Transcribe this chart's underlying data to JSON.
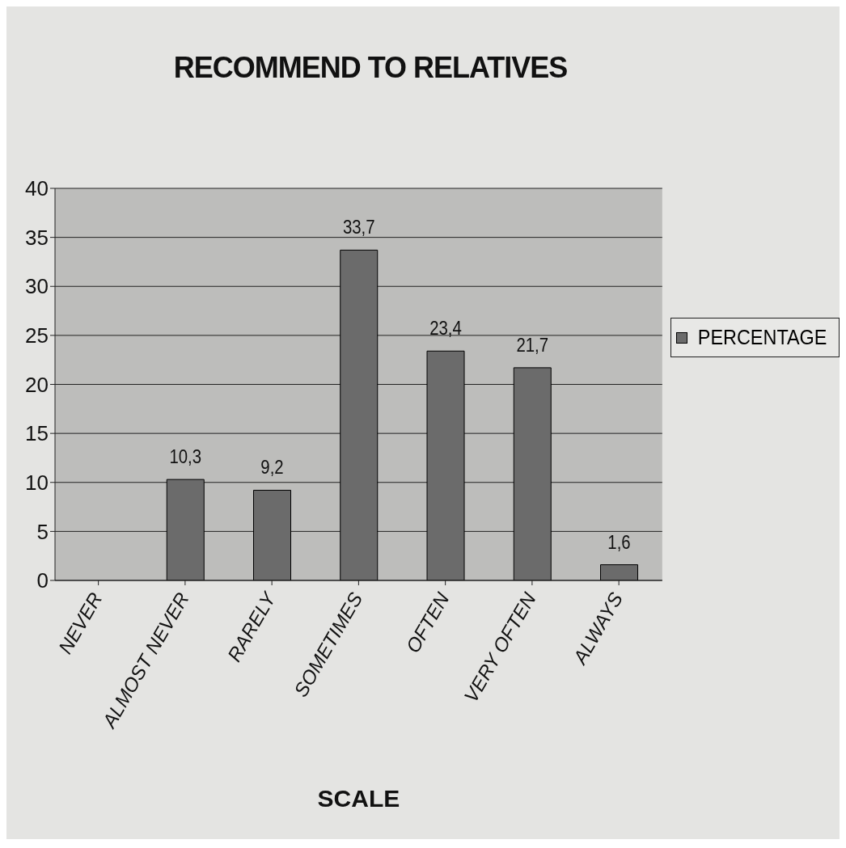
{
  "chart_data": {
    "type": "bar",
    "title": "RECOMMEND TO RELATIVES",
    "xlabel": "SCALE",
    "categories": [
      "NEVER",
      "ALMOST NEVER",
      "RARELY",
      "SOMETIMES",
      "OFTEN",
      "VERY OFTEN",
      "ALWAYS"
    ],
    "series": [
      {
        "name": "PERCENTAGE",
        "color": "#6b6b6b",
        "values": [
          0,
          10.3,
          9.2,
          33.7,
          23.4,
          21.7,
          1.6
        ],
        "value_labels": [
          null,
          "10,3",
          "9,2",
          "33,7",
          "23,4",
          "21,7",
          "1,6"
        ]
      }
    ],
    "ylim": [
      0,
      40
    ],
    "yticks": [
      0,
      5,
      10,
      15,
      20,
      25,
      30,
      35,
      40
    ],
    "grid": "y",
    "legend": "right"
  }
}
